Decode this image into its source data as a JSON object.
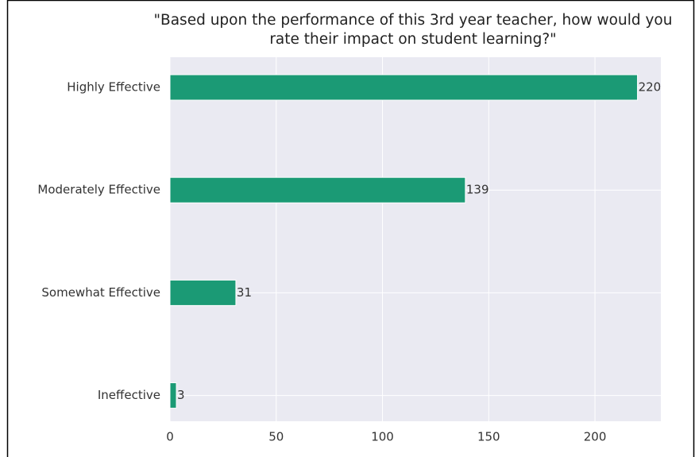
{
  "chart_data": {
    "type": "bar",
    "orientation": "horizontal",
    "title": "\"Based upon the performance of this 3rd year teacher, how would you rate their impact on student learning?\"",
    "categories": [
      "Highly Effective",
      "Moderately Effective",
      "Somewhat Effective",
      "Ineffective"
    ],
    "values": [
      220,
      139,
      31,
      3
    ],
    "color": "#1b9a75",
    "xlim": [
      0,
      231
    ],
    "xticks": [
      0,
      50,
      100,
      150,
      200
    ],
    "grid": true
  }
}
